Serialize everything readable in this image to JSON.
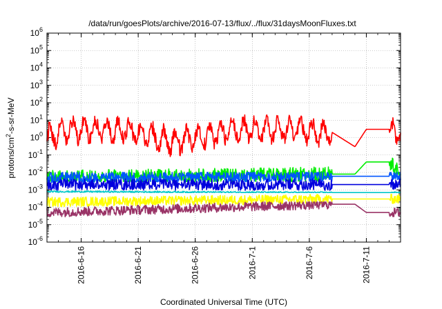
{
  "chart_data": {
    "type": "line",
    "title": "/data/run/goesPlots/archive/2016-07-13/flux/../flux/31daysMoonFluxes.txt",
    "xlabel": "Coordinated Universal Time (UTC)",
    "ylabel": {
      "base": "protons/cm",
      "sup": "2",
      "rest": "-s-sr-MeV"
    },
    "y_scale": "log",
    "ylim": [
      1e-06,
      1000000.0
    ],
    "y_ticks": [
      {
        "base": "10",
        "exp": "-6"
      },
      {
        "base": "10",
        "exp": "-5"
      },
      {
        "base": "10",
        "exp": "-4"
      },
      {
        "base": "10",
        "exp": "-3"
      },
      {
        "base": "10",
        "exp": "-2"
      },
      {
        "base": "10",
        "exp": "-1"
      },
      {
        "base": "10",
        "exp": "0"
      },
      {
        "base": "10",
        "exp": "1"
      },
      {
        "base": "10",
        "exp": "2"
      },
      {
        "base": "10",
        "exp": "3"
      },
      {
        "base": "10",
        "exp": "4"
      },
      {
        "base": "10",
        "exp": "5"
      },
      {
        "base": "10",
        "exp": "6"
      }
    ],
    "xlim": [
      "2016-06-13",
      "2016-07-14"
    ],
    "x_ticks": [
      "2016-6-16",
      "2016-6-21",
      "2016-6-26",
      "2016-7-1",
      "2016-7-6",
      "2016-7-11"
    ],
    "grid": true,
    "data_gap": [
      "2016-07-08",
      "2016-07-10"
    ],
    "series": [
      {
        "color": "#ff0000",
        "typical": 1.5,
        "range": [
          0.05,
          20
        ],
        "keypoints": [
          [
            "2016-06-13",
            0.3
          ],
          [
            "2016-06-15",
            15
          ],
          [
            "2016-06-20",
            10
          ],
          [
            "2016-06-24",
            0.05
          ],
          [
            "2016-06-30",
            15
          ],
          [
            "2016-07-05",
            10
          ],
          [
            "2016-07-08",
            2
          ],
          [
            "2016-07-10",
            0.3
          ],
          [
            "2016-07-11",
            3
          ],
          [
            "2016-07-13",
            3
          ],
          [
            "2016-07-14",
            5
          ]
        ]
      },
      {
        "color": "#00ee00",
        "typical": 0.02,
        "range": [
          0.003,
          0.1
        ],
        "keypoints": [
          [
            "2016-06-13",
            0.005
          ],
          [
            "2016-07-08",
            0.008
          ],
          [
            "2016-07-10",
            0.008
          ],
          [
            "2016-07-11",
            0.04
          ],
          [
            "2016-07-13",
            0.04
          ],
          [
            "2016-07-14",
            0.008
          ]
        ]
      },
      {
        "color": "#0055ff",
        "typical": 0.004,
        "range": [
          0.0008,
          0.01
        ],
        "keypoints": [
          [
            "2016-06-13",
            0.005
          ],
          [
            "2016-07-08",
            0.006
          ],
          [
            "2016-07-14",
            0.006
          ]
        ]
      },
      {
        "color": "#0000dd",
        "typical": 0.002,
        "range": [
          0.0005,
          0.008
        ],
        "keypoints": [
          [
            "2016-06-13",
            0.002
          ],
          [
            "2016-07-08",
            0.002
          ],
          [
            "2016-07-14",
            0.002
          ]
        ]
      },
      {
        "color": "#00c8c8",
        "typical": 0.0008,
        "range": [
          0.0007,
          0.001
        ],
        "keypoints": [
          [
            "2016-06-13",
            0.0008
          ],
          [
            "2016-07-08",
            0.0007
          ],
          [
            "2016-07-14",
            0.0007
          ]
        ]
      },
      {
        "color": "#ffff00",
        "typical": 0.0002,
        "range": [
          8e-05,
          0.0008
        ],
        "keypoints": [
          [
            "2016-06-13",
            0.0002
          ],
          [
            "2016-07-08",
            0.0003
          ],
          [
            "2016-07-14",
            0.0003
          ]
        ]
      },
      {
        "color": "#993366",
        "typical": 5e-05,
        "range": [
          2e-05,
          0.0002
        ],
        "keypoints": [
          [
            "2016-06-13",
            5e-05
          ],
          [
            "2016-07-08",
            0.00015
          ],
          [
            "2016-07-10",
            0.00015
          ],
          [
            "2016-07-11",
            5e-05
          ],
          [
            "2016-07-14",
            5e-05
          ]
        ]
      }
    ]
  }
}
